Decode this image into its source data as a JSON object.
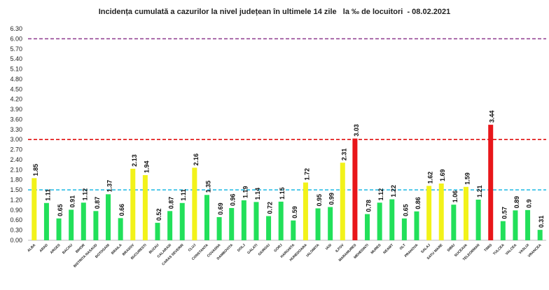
{
  "chart_data": {
    "type": "bar",
    "title": "Incidența cumulată a cazurilor la nivel județean în ultimele 14 zile   la ‰ de locuitori  - 08.02.2021",
    "xlabel": "",
    "ylabel": "",
    "ylim": [
      0,
      6.3
    ],
    "yticks": [
      "0.00",
      "0.30",
      "0.60",
      "0.90",
      "1.20",
      "1.50",
      "1.80",
      "2.10",
      "2.40",
      "2.70",
      "3.00",
      "3.30",
      "3.60",
      "3.90",
      "4.20",
      "4.50",
      "4.80",
      "5.10",
      "5.40",
      "5.70",
      "6.00",
      "6.30"
    ],
    "grid": false,
    "categories": [
      "ALBA",
      "ARAD",
      "ARGES",
      "BACAU",
      "BIHOR",
      "BISTRITA NASAUD",
      "BOTOSANI",
      "BRAILA",
      "BRASOV",
      "BUCURESTI",
      "BUZAU",
      "CALARASI",
      "CARAS SEVERIN",
      "CLUJ",
      "CONSTANTA",
      "COVASNA",
      "DAMBOVITA",
      "DOLJ",
      "GALATI",
      "GIURGIU",
      "GORJ",
      "HARGHITA",
      "HUNEDOARA",
      "IALOMITA",
      "IASI",
      "ILFOV",
      "MARAMURES",
      "MEHEDINTI",
      "MURES",
      "NEAMT",
      "OLT",
      "PRAHOVA",
      "SALAJ",
      "SATU MARE",
      "SIBIU",
      "SUCEAVA",
      "TELEORMAN",
      "TIMIS",
      "TULCEA",
      "VALCEA",
      "VASLUI",
      "VRANCEA"
    ],
    "values": [
      1.85,
      1.11,
      0.65,
      0.91,
      1.12,
      0.87,
      1.37,
      0.66,
      2.13,
      1.94,
      0.52,
      0.87,
      1.11,
      2.16,
      1.35,
      0.69,
      0.96,
      1.19,
      1.14,
      0.72,
      1.15,
      0.59,
      1.72,
      0.95,
      0.99,
      2.31,
      3.03,
      0.78,
      1.12,
      1.22,
      0.65,
      0.86,
      1.62,
      1.69,
      1.06,
      1.59,
      1.21,
      3.44,
      0.57,
      0.89,
      0.9,
      0.31
    ],
    "value_labels": [
      "1.85",
      "1.11",
      "0.65",
      "0.91",
      "1.12",
      "0.87",
      "1.37",
      "0.66",
      "2.13",
      "1.94",
      "0.52",
      "0.87",
      "1.11",
      "2.16",
      "1.35",
      "0.69",
      "0.96",
      "1.19",
      "1.14",
      "0.72",
      "1.15",
      "0.59",
      "1.72",
      "0.95",
      "0.99",
      "2.31",
      "3.03",
      "0.78",
      "1.12",
      "1.22",
      "0.65",
      "0.86",
      "1.62",
      "1.69",
      "1.06",
      "1.59",
      "1.21",
      "3.44",
      "0.57",
      "0.89",
      "0.9",
      "0.31"
    ],
    "thresholds": [
      {
        "value": 1.5,
        "color": "#2ebfe6",
        "style": "dashed"
      },
      {
        "value": 3.0,
        "color": "#e01010",
        "style": "dashed"
      },
      {
        "value": 6.0,
        "color": "#8e3a8e",
        "style": "dashed"
      }
    ],
    "colors": {
      "low": "#22e05a",
      "medium": "#f2f21a",
      "high": "#e8161a"
    }
  }
}
